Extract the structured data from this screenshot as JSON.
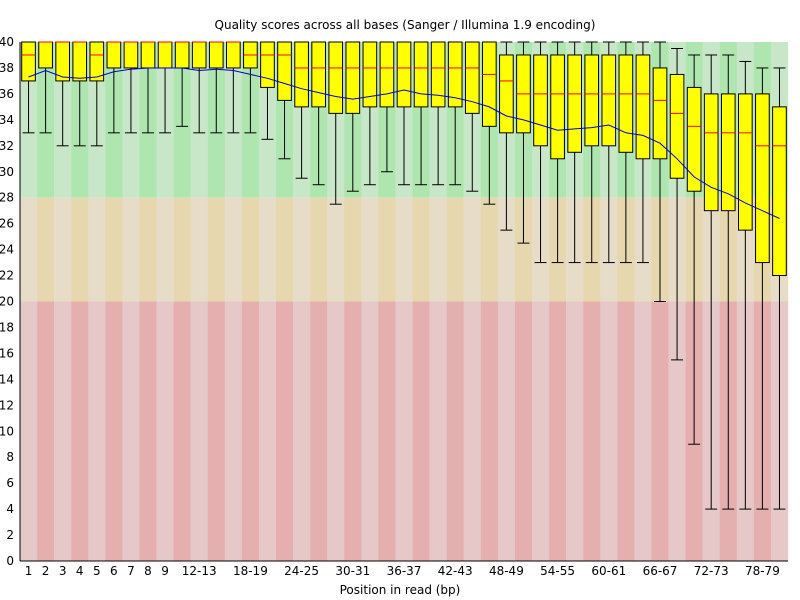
{
  "chart_data": {
    "type": "box",
    "title": "Quality scores across all bases (Sanger / Illumina 1.9 encoding)",
    "xlabel": "Position in read (bp)",
    "ylabel": "",
    "ylim": [
      0,
      40
    ],
    "yticks": [
      0,
      2,
      4,
      6,
      8,
      10,
      12,
      14,
      16,
      18,
      20,
      22,
      24,
      26,
      28,
      30,
      32,
      34,
      36,
      38,
      40
    ],
    "quality_bands": [
      {
        "name": "good",
        "from": 28,
        "to": 40,
        "color_light": "#c8e6c8",
        "color_dark": "#afe6af"
      },
      {
        "name": "reasonable",
        "from": 20,
        "to": 28,
        "color_light": "#e6dcc8",
        "color_dark": "#e6d7af"
      },
      {
        "name": "poor",
        "from": 0,
        "to": 20,
        "color_light": "#e6c8c8",
        "color_dark": "#e6afaf"
      }
    ],
    "colors": {
      "box": "#ffff00",
      "box_stroke": "#000000",
      "median": "#ff0000",
      "mean_line": "#0000cc",
      "whisker": "#000000"
    },
    "categories": [
      "1",
      "2",
      "3",
      "4",
      "5",
      "6",
      "7",
      "8",
      "9",
      "10-11",
      "12-13",
      "14-15",
      "16-17",
      "18-19",
      "20-21",
      "22-23",
      "24-25",
      "26-27",
      "28-29",
      "30-31",
      "32-33",
      "34-35",
      "36-37",
      "38-39",
      "40-41",
      "42-43",
      "44-45",
      "46-47",
      "48-49",
      "50-51",
      "52-53",
      "54-55",
      "56-57",
      "58-59",
      "60-61",
      "62-63",
      "64-65",
      "66-67",
      "68-69",
      "70-71",
      "72-73",
      "74-75",
      "76-77",
      "78-79",
      "80"
    ],
    "xtick_labels": [
      "1",
      "2",
      "3",
      "4",
      "5",
      "6",
      "7",
      "8",
      "9",
      "12-13",
      "18-19",
      "24-25",
      "30-31",
      "36-37",
      "42-43",
      "48-49",
      "54-55",
      "60-61",
      "66-67",
      "72-73",
      "78-79"
    ],
    "series": [
      {
        "name": "",
        "q1": [
          37,
          38,
          37,
          37,
          37,
          38,
          38,
          38,
          38,
          38,
          38,
          38,
          38,
          38,
          36.5,
          35.5,
          35,
          35,
          34.5,
          34.5,
          35,
          35,
          35,
          35,
          35,
          35,
          34.5,
          33.5,
          33,
          33,
          32,
          31,
          31.5,
          32,
          32,
          31.5,
          31,
          31,
          29.5,
          28.5,
          27,
          27,
          25.5,
          23,
          22
        ],
        "median": [
          39,
          40,
          40,
          40,
          39,
          40,
          40,
          40,
          40,
          40,
          40,
          40,
          40,
          39,
          39,
          39,
          38,
          38,
          38,
          38,
          38,
          38,
          38,
          38,
          38,
          38,
          38,
          37.5,
          37,
          36,
          36,
          36,
          36,
          36,
          36,
          36,
          36,
          35.5,
          34.5,
          33.5,
          33,
          33,
          33,
          32,
          32
        ],
        "q3": [
          40,
          40,
          40,
          40,
          40,
          40,
          40,
          40,
          40,
          40,
          40,
          40,
          40,
          40,
          40,
          40,
          40,
          40,
          40,
          40,
          40,
          40,
          40,
          40,
          40,
          40,
          40,
          40,
          39,
          39,
          39,
          39,
          39,
          39,
          39,
          39,
          39,
          38,
          37.5,
          36.5,
          36,
          36,
          36,
          36,
          35
        ],
        "lower": [
          33,
          33,
          32,
          32,
          32,
          33,
          33,
          33,
          33,
          33.5,
          33,
          33,
          33,
          33,
          32.5,
          31,
          29.5,
          29,
          27.5,
          28.5,
          29,
          30,
          29,
          29,
          29,
          29,
          28.5,
          27.5,
          25.5,
          24.5,
          23,
          23,
          23,
          23,
          23,
          23,
          23,
          20,
          15.5,
          9,
          4,
          4,
          4,
          4,
          4
        ],
        "upper": [
          40,
          40,
          40,
          40,
          40,
          40,
          40,
          40,
          40,
          40,
          40,
          40,
          40,
          40,
          40,
          40,
          40,
          40,
          40,
          40,
          40,
          40,
          40,
          40,
          40,
          40,
          40,
          40,
          40,
          40,
          40,
          40,
          40,
          40,
          40,
          40,
          40,
          40,
          39.5,
          39,
          39,
          39,
          38.5,
          38,
          38
        ],
        "mean": [
          37.3,
          37.8,
          37.3,
          37.2,
          37.3,
          37.7,
          37.9,
          38.0,
          38.0,
          38.0,
          37.8,
          37.9,
          37.8,
          37.5,
          37.2,
          36.8,
          36.4,
          36.1,
          35.8,
          35.6,
          35.8,
          36.0,
          36.3,
          36.0,
          35.9,
          35.7,
          35.4,
          35.0,
          34.3,
          34.0,
          33.6,
          33.2,
          33.3,
          33.4,
          33.6,
          33.0,
          32.8,
          32.2,
          31.0,
          29.6,
          28.8,
          28.3,
          27.6,
          27.0,
          26.4
        ]
      }
    ]
  }
}
